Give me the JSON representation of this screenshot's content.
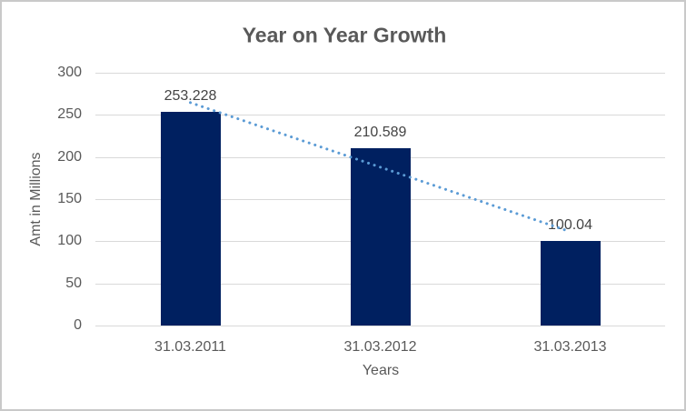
{
  "chart_data": {
    "type": "bar",
    "title": "Year on Year Growth",
    "categories": [
      "31.03.2011",
      "31.03.2012",
      "31.03.2013"
    ],
    "values": [
      253.228,
      210.589,
      100.04
    ],
    "data_labels": [
      "253.228",
      "210.589",
      "100.04"
    ],
    "xlabel": "Years",
    "ylabel": "Amt in Millions",
    "ylim": [
      0,
      300
    ],
    "yticks": [
      0,
      50,
      100,
      150,
      200,
      250,
      300
    ],
    "grid": true,
    "legend": "none",
    "bar_color": "#002060",
    "trendline": {
      "type": "linear",
      "style": "dotted",
      "color": "#5b9bd5"
    },
    "colors": {
      "gridline": "#d9d9d9",
      "title_text": "#595959",
      "axis_text": "#595959",
      "data_label_text": "#444444",
      "chart_border": "#c9c9c9",
      "background": "#ffffff"
    }
  }
}
